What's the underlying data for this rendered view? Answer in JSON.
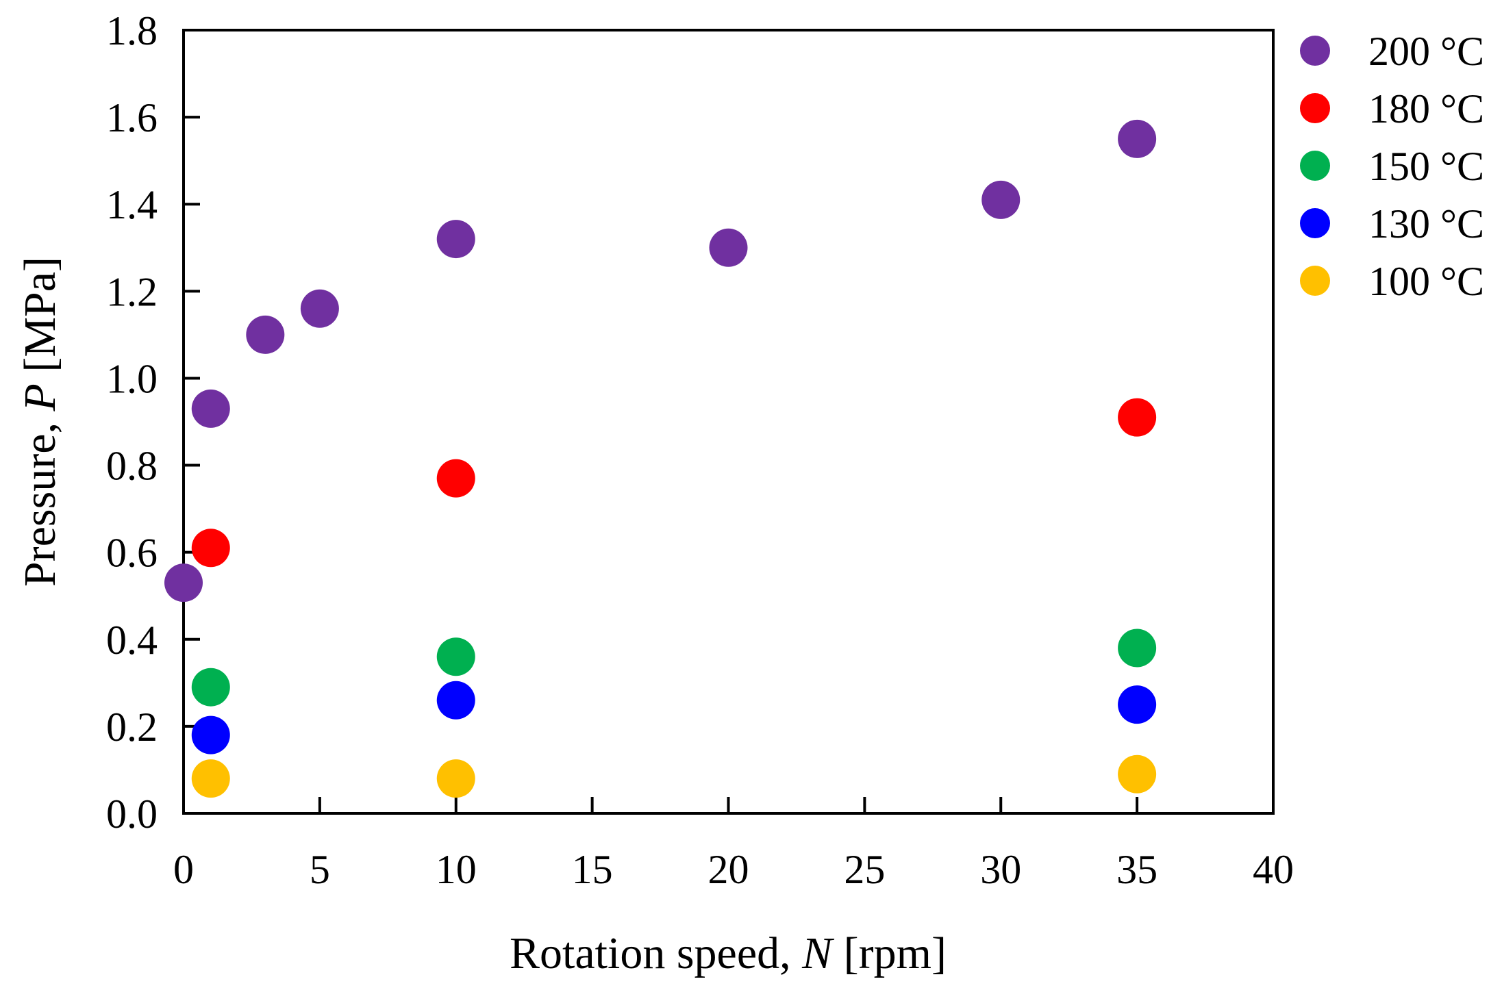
{
  "chart_data": {
    "type": "scatter",
    "title": "",
    "xlabel_prefix": "Rotation speed, ",
    "xlabel_var": "N",
    "xlabel_unit": " [rpm]",
    "ylabel_prefix": "Pressure, ",
    "ylabel_var": "P",
    "ylabel_unit": " [MPa]",
    "xlim": [
      0,
      40
    ],
    "ylim": [
      0,
      1.8
    ],
    "xticks": [
      "0",
      "5",
      "10",
      "15",
      "20",
      "25",
      "30",
      "35",
      "40"
    ],
    "yticks": [
      "0.0",
      "0.2",
      "0.4",
      "0.6",
      "0.8",
      "1.0",
      "1.2",
      "1.4",
      "1.6",
      "1.8"
    ],
    "legend_position": "right",
    "series": [
      {
        "name": "200 °C",
        "color": "#7030A0",
        "points": [
          [
            0,
            0.53
          ],
          [
            1,
            0.93
          ],
          [
            3,
            1.1
          ],
          [
            5,
            1.16
          ],
          [
            10,
            1.32
          ],
          [
            20,
            1.3
          ],
          [
            30,
            1.41
          ],
          [
            35,
            1.55
          ]
        ]
      },
      {
        "name": "180 °C",
        "color": "#FF0000",
        "points": [
          [
            1,
            0.61
          ],
          [
            10,
            0.77
          ],
          [
            35,
            0.91
          ]
        ]
      },
      {
        "name": "150 °C",
        "color": "#00B050",
        "points": [
          [
            1,
            0.29
          ],
          [
            10,
            0.36
          ],
          [
            35,
            0.38
          ]
        ]
      },
      {
        "name": "130 °C",
        "color": "#0000FF",
        "points": [
          [
            1,
            0.18
          ],
          [
            10,
            0.26
          ],
          [
            35,
            0.25
          ]
        ]
      },
      {
        "name": "100 °C",
        "color": "#FFC000",
        "points": [
          [
            1,
            0.08
          ],
          [
            10,
            0.08
          ],
          [
            35,
            0.09
          ]
        ]
      }
    ]
  }
}
